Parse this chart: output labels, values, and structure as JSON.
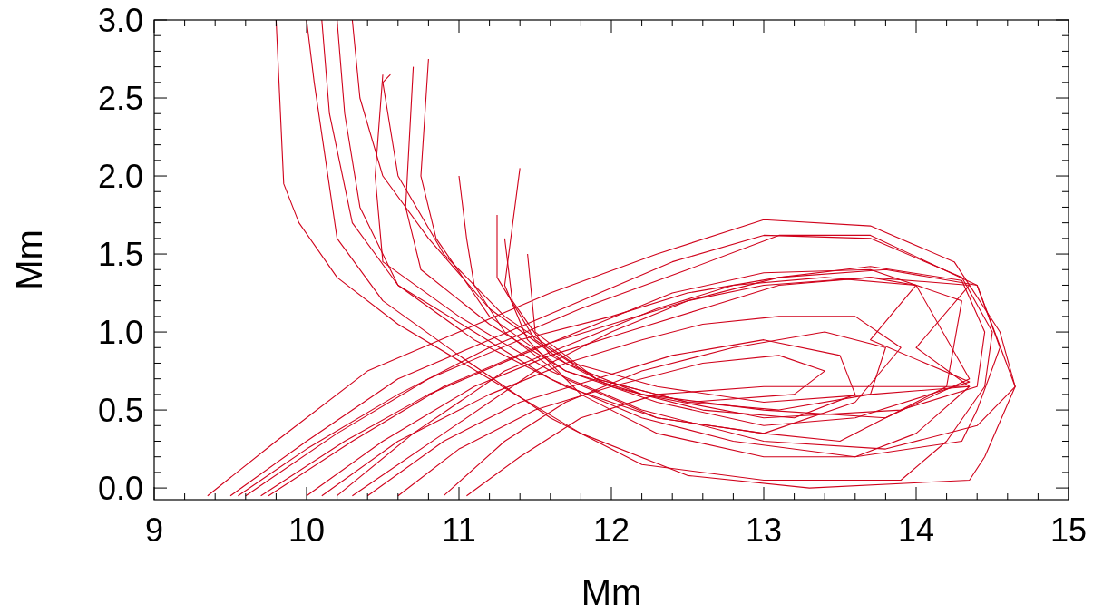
{
  "chart_data": {
    "type": "line",
    "xlabel": "Mm",
    "ylabel": "Mm",
    "xlim": [
      9,
      15
    ],
    "ylim": [
      -0.075,
      3.0
    ],
    "xticks": [
      9,
      {
        "value": 9.2,
        "label": null
      },
      {
        "value": 9.4,
        "label": null
      },
      {
        "value": 9.6,
        "label": null
      },
      {
        "value": 9.8,
        "label": null
      },
      10,
      {
        "value": 10.2,
        "label": null
      },
      {
        "value": 10.4,
        "label": null
      },
      {
        "value": 10.6,
        "label": null
      },
      {
        "value": 10.8,
        "label": null
      },
      11,
      {
        "value": 11.2,
        "label": null
      },
      {
        "value": 11.4,
        "label": null
      },
      {
        "value": 11.6,
        "label": null
      },
      {
        "value": 11.8,
        "label": null
      },
      12,
      {
        "value": 12.2,
        "label": null
      },
      {
        "value": 12.4,
        "label": null
      },
      {
        "value": 12.6,
        "label": null
      },
      {
        "value": 12.8,
        "label": null
      },
      13,
      {
        "value": 13.2,
        "label": null
      },
      {
        "value": 13.4,
        "label": null
      },
      {
        "value": 13.6,
        "label": null
      },
      {
        "value": 13.8,
        "label": null
      },
      14,
      {
        "value": 14.2,
        "label": null
      },
      {
        "value": 14.4,
        "label": null
      },
      {
        "value": 14.6,
        "label": null
      },
      {
        "value": 14.8,
        "label": null
      },
      15
    ],
    "yticks": [
      {
        "value": 0,
        "label": "0.0"
      },
      {
        "value": 0.1,
        "label": null
      },
      {
        "value": 0.2,
        "label": null
      },
      {
        "value": 0.3,
        "label": null
      },
      {
        "value": 0.4,
        "label": null
      },
      0.5,
      {
        "value": 0.6,
        "label": null
      },
      {
        "value": 0.7,
        "label": null
      },
      {
        "value": 0.8,
        "label": null
      },
      {
        "value": 0.9,
        "label": null
      },
      {
        "value": 1,
        "label": "1.0"
      },
      {
        "value": 1.1,
        "label": null
      },
      {
        "value": 1.2,
        "label": null
      },
      {
        "value": 1.3,
        "label": null
      },
      {
        "value": 1.4,
        "label": null
      },
      1.5,
      {
        "value": 1.6,
        "label": null
      },
      {
        "value": 1.7,
        "label": null
      },
      {
        "value": 1.8,
        "label": null
      },
      {
        "value": 1.9,
        "label": null
      },
      {
        "value": 2,
        "label": "2.0"
      },
      {
        "value": 2.1,
        "label": null
      },
      {
        "value": 2.2,
        "label": null
      },
      {
        "value": 2.3,
        "label": null
      },
      {
        "value": 2.4,
        "label": null
      },
      2.5,
      {
        "value": 2.6,
        "label": null
      },
      {
        "value": 2.7,
        "label": null
      },
      {
        "value": 2.8,
        "label": null
      },
      {
        "value": 2.9,
        "label": null
      },
      {
        "value": 3,
        "label": "3.0"
      }
    ],
    "grid": false,
    "series": [
      {
        "color": "#d0021b",
        "x": [
          9.35,
          9.8,
          10.4,
          11,
          11.6,
          12.3,
          13,
          13.7,
          14.25,
          14.55,
          14.65,
          14.45,
          14.35,
          13.3,
          12.5,
          11.8,
          11.2,
          10.6,
          10.2,
          9.95,
          9.85,
          9.8
        ],
        "values": [
          -0.05,
          0.3,
          0.75,
          1.0,
          1.25,
          1.5,
          1.72,
          1.68,
          1.45,
          1.0,
          0.65,
          0.2,
          0.05,
          0.0,
          0.08,
          0.35,
          0.7,
          1.05,
          1.35,
          1.7,
          1.95,
          3.0
        ]
      },
      {
        "color": "#d0021b",
        "x": [
          9.5,
          10,
          10.6,
          11.2,
          11.8,
          12.4,
          13,
          13.7,
          14.3,
          14.5,
          14.45,
          14.2,
          13.9,
          13,
          12.2,
          11.6,
          11,
          10.5,
          10.2,
          10.05,
          10.0
        ],
        "values": [
          -0.05,
          0.3,
          0.7,
          0.95,
          1.2,
          1.45,
          1.62,
          1.6,
          1.35,
          1.0,
          0.65,
          0.3,
          0.05,
          0.05,
          0.15,
          0.45,
          0.85,
          1.2,
          1.6,
          2.6,
          3.0
        ]
      },
      {
        "color": "#d0021b",
        "x": [
          9.6,
          10.2,
          10.8,
          11.4,
          12,
          12.5,
          13.1,
          13.7,
          14.3,
          14.45,
          14.4,
          13.9,
          13,
          12.2,
          11.7,
          11.2,
          10.8,
          10.5,
          10.35,
          10.3
        ],
        "values": [
          -0.05,
          0.35,
          0.7,
          0.95,
          1.1,
          1.25,
          1.35,
          1.42,
          1.33,
          1.0,
          0.65,
          0.5,
          0.45,
          0.6,
          0.8,
          1.15,
          1.6,
          2.0,
          2.5,
          3.0
        ]
      },
      {
        "color": "#d0021b",
        "x": [
          9.75,
          10.3,
          10.9,
          11.5,
          12,
          12.5,
          13,
          13.7,
          14.35,
          14.0,
          14.35,
          13.7,
          13,
          12.3,
          11.75,
          11.3,
          10.9,
          10.6,
          10.5,
          10.55
        ],
        "values": [
          -0.05,
          0.3,
          0.65,
          0.9,
          1.05,
          1.2,
          1.3,
          1.35,
          1.3,
          0.9,
          0.65,
          0.6,
          0.55,
          0.65,
          0.8,
          1.1,
          1.5,
          2.0,
          2.6,
          2.65
        ]
      },
      {
        "color": "#d0021b",
        "x": [
          10.0,
          10.5,
          11.1,
          11.6,
          12.1,
          12.6,
          13.1,
          13.7,
          14.0,
          13.7,
          14.35,
          13.6,
          13,
          12.3,
          11.7,
          11.2,
          10.85,
          10.75,
          10.8
        ],
        "values": [
          -0.05,
          0.3,
          0.65,
          0.85,
          1.0,
          1.15,
          1.3,
          1.35,
          1.3,
          0.95,
          0.68,
          0.45,
          0.4,
          0.55,
          0.75,
          1.1,
          1.6,
          2.0,
          2.75
        ]
      },
      {
        "color": "#d0021b",
        "x": [
          10.1,
          10.6,
          11.2,
          11.7,
          12.2,
          12.6,
          13.1,
          13.6,
          13.9,
          13.6,
          13,
          12.3,
          11.7,
          11.3,
          11.1,
          11.05,
          11.0
        ],
        "values": [
          -0.05,
          0.3,
          0.6,
          0.8,
          0.95,
          1.05,
          1.1,
          1.1,
          0.9,
          0.55,
          0.35,
          0.45,
          0.7,
          1.0,
          1.3,
          1.6,
          2.0
        ]
      },
      {
        "color": "#d0021b",
        "x": [
          10.4,
          10.9,
          11.4,
          11.9,
          12.4,
          13,
          13.5,
          13.6,
          13.2,
          12.6,
          12,
          11.6,
          11.35,
          11.3
        ],
        "values": [
          -0.05,
          0.3,
          0.55,
          0.7,
          0.85,
          0.95,
          0.85,
          0.6,
          0.45,
          0.5,
          0.65,
          0.85,
          1.2,
          1.6
        ]
      },
      {
        "color": "#d0021b",
        "x": [
          10.6,
          11.0,
          11.5,
          12,
          12.6,
          13.1,
          13.4,
          13.2,
          12.5,
          11.9,
          11.5,
          11.45
        ],
        "values": [
          -0.05,
          0.25,
          0.5,
          0.65,
          0.8,
          0.85,
          0.75,
          0.6,
          0.55,
          0.7,
          1.0,
          1.5
        ]
      },
      {
        "color": "#d0021b",
        "x": [
          10.3,
          10.9,
          11.5,
          12,
          12.5,
          13.1,
          13.8,
          14.4,
          14.65,
          14.4,
          13.8,
          13,
          12.2,
          11.6,
          11.0,
          10.5,
          10.45,
          10.5
        ],
        "values": [
          -0.05,
          0.35,
          0.75,
          1.0,
          1.2,
          1.35,
          1.4,
          1.3,
          0.65,
          0.4,
          0.25,
          0.3,
          0.5,
          0.75,
          1.1,
          1.45,
          2.0,
          2.65
        ]
      },
      {
        "color": "#d0021b",
        "x": [
          11.05,
          11.4,
          11.8,
          12.3,
          13,
          13.7,
          14.35,
          14.0,
          13.6,
          13,
          12.3,
          11.8,
          11.45,
          11.3,
          11.4
        ],
        "values": [
          -0.05,
          0.2,
          0.45,
          0.6,
          0.65,
          0.65,
          0.65,
          0.35,
          0.2,
          0.2,
          0.35,
          0.6,
          0.95,
          1.3,
          2.05
        ]
      },
      {
        "color": "#d0021b",
        "x": [
          9.55,
          10,
          10.6,
          11.2,
          11.8,
          12.5,
          13.1,
          13.7,
          14.4,
          14.55,
          14.4,
          14.3,
          13.6,
          12.8,
          12.2,
          11.6,
          11.1,
          10.6,
          10.3,
          10.15,
          10.1
        ],
        "values": [
          -0.05,
          0.25,
          0.6,
          0.9,
          1.15,
          1.4,
          1.62,
          1.62,
          1.3,
          0.9,
          0.5,
          0.3,
          0.2,
          0.3,
          0.45,
          0.7,
          1.0,
          1.3,
          1.7,
          2.4,
          3.0
        ]
      },
      {
        "color": "#d0021b",
        "x": [
          10.2,
          10.7,
          11.3,
          11.8,
          12.3,
          12.8,
          13.4,
          14,
          14.35,
          13.8,
          13,
          12.2,
          11.7,
          11.2,
          10.75,
          10.65,
          10.7
        ],
        "values": [
          -0.05,
          0.35,
          0.75,
          0.95,
          1.15,
          1.3,
          1.35,
          1.3,
          0.7,
          0.45,
          0.5,
          0.6,
          0.75,
          1.05,
          1.4,
          1.8,
          2.7
        ]
      },
      {
        "color": "#d0021b",
        "x": [
          9.7,
          10.25,
          10.8,
          11.4,
          11.9,
          12.4,
          13,
          13.7,
          14.3,
          14.2,
          13.5,
          13,
          12.3,
          11.7,
          11.1,
          10.6,
          10.35,
          10.25,
          10.2
        ],
        "values": [
          -0.05,
          0.3,
          0.6,
          0.85,
          1.05,
          1.25,
          1.38,
          1.4,
          1.2,
          0.65,
          0.3,
          0.35,
          0.45,
          0.65,
          0.95,
          1.3,
          1.8,
          2.4,
          3.0
        ]
      },
      {
        "color": "#d0021b",
        "x": [
          10.9,
          11.3,
          11.7,
          12.2,
          12.8,
          13.4,
          13.8,
          13.7,
          13.1,
          12.5,
          11.9,
          11.5,
          11.25,
          11.25
        ],
        "values": [
          -0.05,
          0.3,
          0.55,
          0.75,
          0.9,
          1.0,
          0.9,
          0.6,
          0.5,
          0.55,
          0.7,
          0.95,
          1.35,
          1.75
        ]
      }
    ]
  }
}
